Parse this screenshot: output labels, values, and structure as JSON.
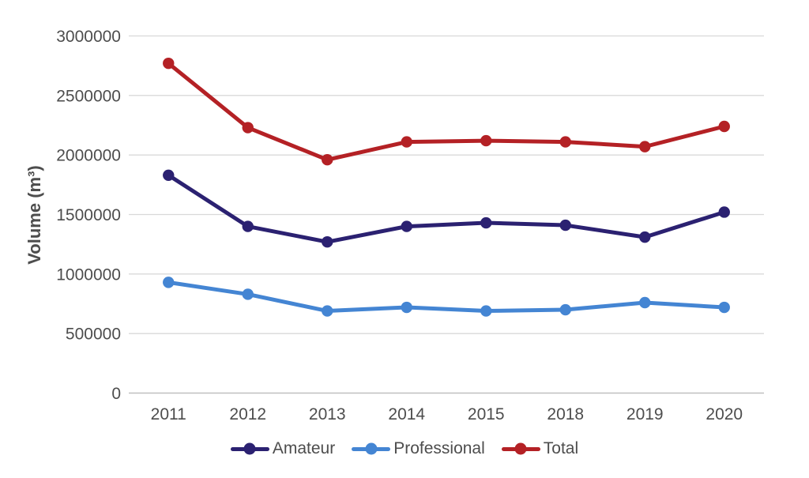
{
  "chart_data": {
    "type": "line",
    "categories": [
      "2011",
      "2012",
      "2013",
      "2014",
      "2015",
      "2018",
      "2019",
      "2020"
    ],
    "series": [
      {
        "name": "Amateur",
        "color": "#2B2171",
        "values": [
          1830000,
          1400000,
          1270000,
          1400000,
          1430000,
          1410000,
          1310000,
          1520000
        ]
      },
      {
        "name": "Professional",
        "color": "#4485D3",
        "values": [
          930000,
          830000,
          690000,
          720000,
          690000,
          700000,
          760000,
          720000
        ]
      },
      {
        "name": "Total",
        "color": "#B42125",
        "values": [
          2770000,
          2230000,
          1960000,
          2110000,
          2120000,
          2110000,
          2070000,
          2240000
        ]
      }
    ],
    "title": "",
    "xlabel": "",
    "ylabel": "Volume (m³)",
    "ylim": [
      0,
      3000000
    ],
    "ytick_step": 500000,
    "yticks": [
      "0",
      "500000",
      "1000000",
      "1500000",
      "2000000",
      "2500000",
      "3000000"
    ],
    "grid": true,
    "legend_position": "bottom"
  },
  "colors": {
    "text": "#4D4D4D",
    "gridline": "#D9D9D9",
    "axis_line": "#BFBFBF",
    "background": "#FFFFFF"
  }
}
